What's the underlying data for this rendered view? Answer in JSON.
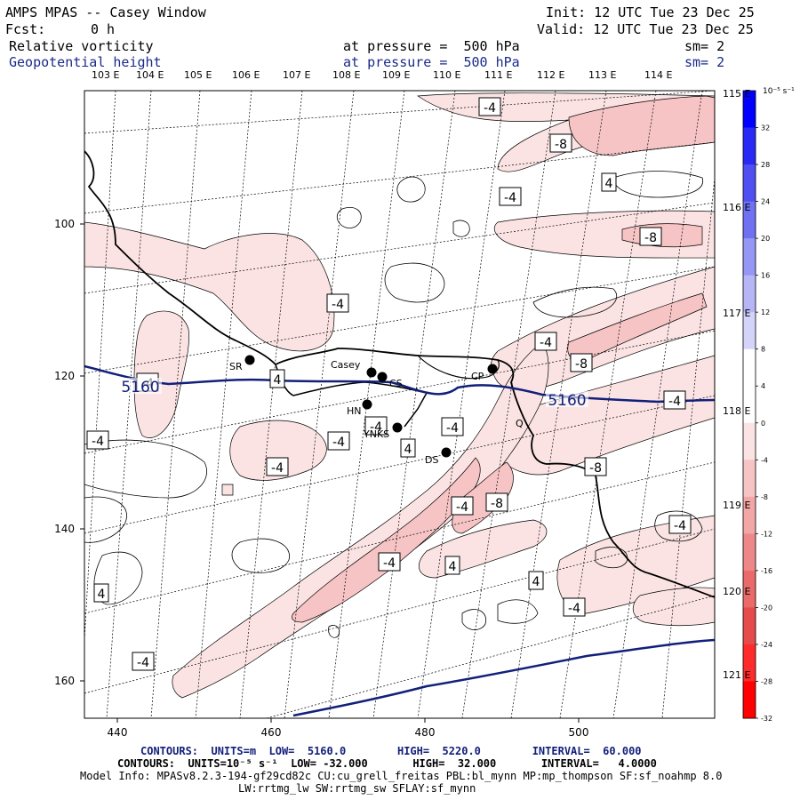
{
  "header": {
    "title": "AMPS MPAS -- Casey Window",
    "init": "Init: 12 UTC Tue 23 Dec 25",
    "fcst_label": "Fcst:",
    "fcst_value": "0 h",
    "valid": "Valid: 12 UTC Tue 23 Dec 25",
    "field1": {
      "name": "Relative vorticity",
      "level": "at pressure =  500 hPa",
      "sm": "sm= 2"
    },
    "field2": {
      "name": "Geopotential height",
      "level": "at pressure =  500 hPa",
      "sm": "sm= 2"
    }
  },
  "longitude_labels_top": [
    "103 E",
    "104 E",
    "105 E",
    "106 E",
    "107 E",
    "108 E",
    "109 E",
    "110 E",
    "111 E",
    "112 E",
    "113 E",
    "114 E"
  ],
  "longitude_labels_right": [
    "115 E",
    "116 E",
    "117 E",
    "118 E",
    "119 E",
    "120 E",
    "121 E"
  ],
  "x_axis_ticks": [
    "440",
    "460",
    "480",
    "500"
  ],
  "y_axis_ticks": [
    "100",
    "120",
    "140",
    "160"
  ],
  "stations": [
    {
      "name": "SR"
    },
    {
      "name": "Casey"
    },
    {
      "name": "CS"
    },
    {
      "name": "CP"
    },
    {
      "name": "HN"
    },
    {
      "name": "YNKS"
    },
    {
      "name": "DS"
    },
    {
      "name": "Q"
    }
  ],
  "height_contour_labels": [
    "5160",
    "5160"
  ],
  "vorticity_labels": [
    "-4",
    "-8",
    "-4",
    "4",
    "-8",
    "-4",
    "-4",
    "-8",
    "4",
    "-4",
    "-4",
    "-4",
    "-4",
    "-4",
    "4",
    "-4",
    "-8",
    "-8",
    "-4",
    "-4",
    "4",
    "4",
    "4",
    "-4",
    "-4",
    "-4",
    "-4"
  ],
  "colorbar": {
    "unit": "10⁻⁵ s⁻¹",
    "labels": [
      "32",
      "28",
      "24",
      "20",
      "16",
      "12",
      "8",
      "4",
      "0",
      "-4",
      "-8",
      "-12",
      "-16",
      "-20",
      "-24",
      "-28",
      "-32"
    ],
    "colors": [
      "#0000ff",
      "#2a2af5",
      "#4f4ff2",
      "#7070f2",
      "#9696f5",
      "#b6b6f7",
      "#d4d4fb",
      "#ffffff",
      "#ffffff",
      "#fbe3e3",
      "#f6c4c4",
      "#f2a6a6",
      "#ee8888",
      "#ea6a6a",
      "#e64a4a",
      "#ff2a2a",
      "#ff0000"
    ]
  },
  "footer": {
    "contours1": "CONTOURS:  UNITS=m  LOW=  5160.0        HIGH=  5220.0        INTERVAL=  60.000",
    "contours2": "CONTOURS:  UNITS=10⁻⁵ s⁻¹  LOW= -32.000       HIGH=  32.000       INTERVAL=   4.0000",
    "model_info": "Model Info: MPASv8.2.3-194-gf29cd82c CU:cu_grell_freitas PBL:bl_mynn MP:mp_thompson SF:sf_noahmp 8.0",
    "model_info2": "LW:rrtmg_lw SW:rrtmg_sw SFLAY:sf_mynn"
  }
}
